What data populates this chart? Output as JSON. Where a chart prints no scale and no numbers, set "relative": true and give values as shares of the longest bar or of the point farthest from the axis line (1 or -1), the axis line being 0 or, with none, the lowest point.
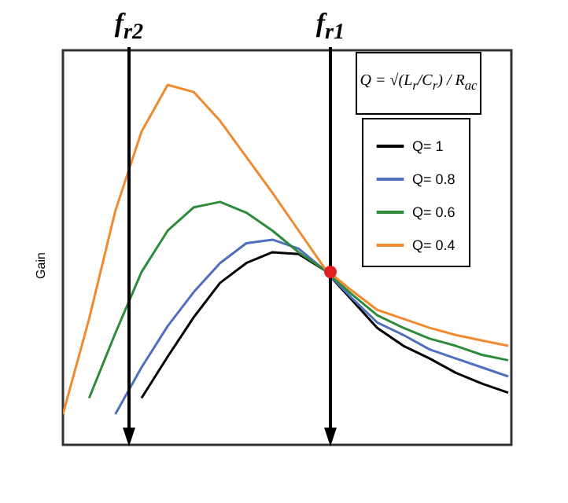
{
  "chart_data": {
    "type": "line",
    "relative": true,
    "ylabel": "Gain",
    "legend": "top right",
    "tick_labels": false,
    "grid": false,
    "categories": [
      null,
      null,
      null,
      null,
      null,
      null,
      null,
      null,
      null,
      null,
      null,
      null,
      null,
      null,
      null,
      null,
      null,
      null
    ],
    "series": [
      {
        "name": "Q= 1",
        "color": "#000000",
        "values": [
          null,
          null,
          null,
          0.13,
          0.245,
          0.355,
          0.45,
          0.505,
          0.535,
          0.53,
          0.485,
          0.405,
          0.325,
          0.275,
          0.24,
          0.2,
          0.17,
          0.145
        ]
      },
      {
        "name": "Q= 0.8",
        "color": "#4f6fbf",
        "values": [
          null,
          null,
          0.085,
          0.215,
          0.33,
          0.425,
          0.505,
          0.56,
          0.57,
          0.545,
          0.485,
          0.41,
          0.34,
          0.305,
          0.265,
          0.24,
          0.215,
          0.19
        ]
      },
      {
        "name": "Q= 0.6",
        "color": "#2e8b3a",
        "values": [
          null,
          0.13,
          0.31,
          0.48,
          0.595,
          0.66,
          0.675,
          0.645,
          0.595,
          0.535,
          0.485,
          0.42,
          0.36,
          0.325,
          0.295,
          0.275,
          0.25,
          0.235
        ]
      },
      {
        "name": "Q= 0.4",
        "color": "#f08a30",
        "values": [
          0.085,
          0.35,
          0.65,
          0.87,
          1,
          0.98,
          0.9,
          0.8,
          0.7,
          0.595,
          0.49,
          0.43,
          0.375,
          0.35,
          0.325,
          0.305,
          0.29,
          0.275
        ]
      }
    ],
    "annotations": [
      "Q = √(L$_{r}$/C$_{r}$) / R$_{ac}$",
      "f$_{r2}$",
      "f$_{r1}$"
    ]
  }
}
